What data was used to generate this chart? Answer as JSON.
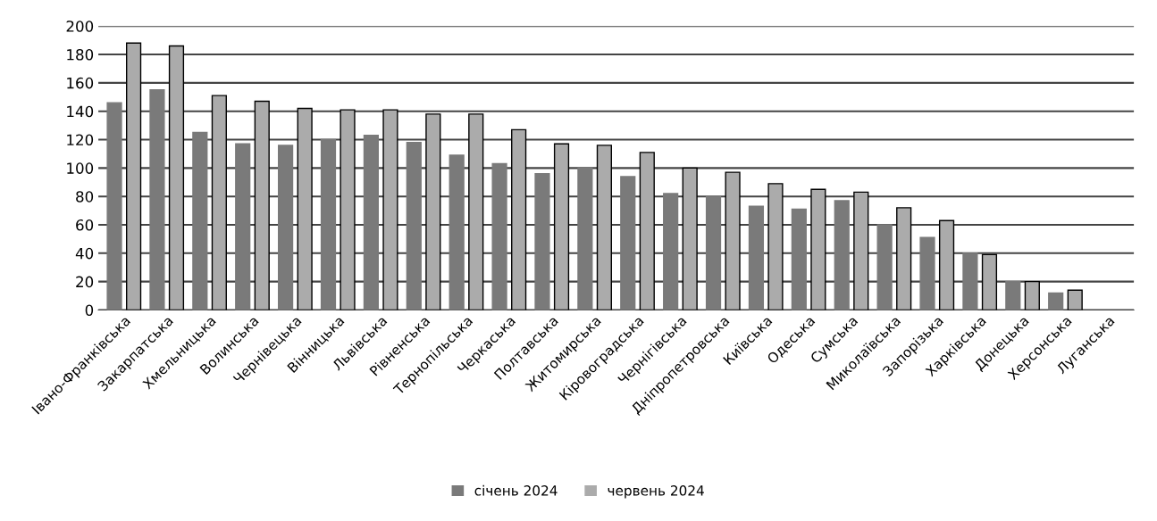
{
  "chart_data": {
    "type": "bar",
    "categories": [
      "Івано-Франківська",
      "Закарпатська",
      "Хмельницька",
      "Волинська",
      "Чернівецька",
      "Вінницька",
      "Львівська",
      "Рівненська",
      "Тернопільська",
      "Черкаська",
      "Полтавська",
      "Житомирська",
      "Кіровоградська",
      "Чернігівська",
      "Дніпропетровська",
      "Київська",
      "Одеська",
      "Сумська",
      "Миколаївська",
      "Запорізька",
      "Харківська",
      "Донецька",
      "Херсонська",
      "Луганська"
    ],
    "series": [
      {
        "name": "січень 2024",
        "color": "#7a7a7a",
        "values": [
          146,
          155,
          125,
          117,
          116,
          120,
          123,
          118,
          109,
          103,
          96,
          100,
          94,
          82,
          80,
          73,
          71,
          77,
          60,
          51,
          40,
          20,
          12,
          null
        ]
      },
      {
        "name": "червень 2024",
        "color": "#ababab",
        "values": [
          188,
          186,
          151,
          147,
          142,
          141,
          141,
          138,
          138,
          127,
          117,
          116,
          111,
          100,
          97,
          89,
          85,
          83,
          72,
          63,
          39,
          20,
          14,
          null
        ]
      }
    ],
    "ylim": [
      0,
      200
    ],
    "yticks": [
      0,
      20,
      40,
      60,
      80,
      100,
      120,
      140,
      160,
      180,
      200
    ],
    "grid": "y",
    "legend": "bottom"
  }
}
